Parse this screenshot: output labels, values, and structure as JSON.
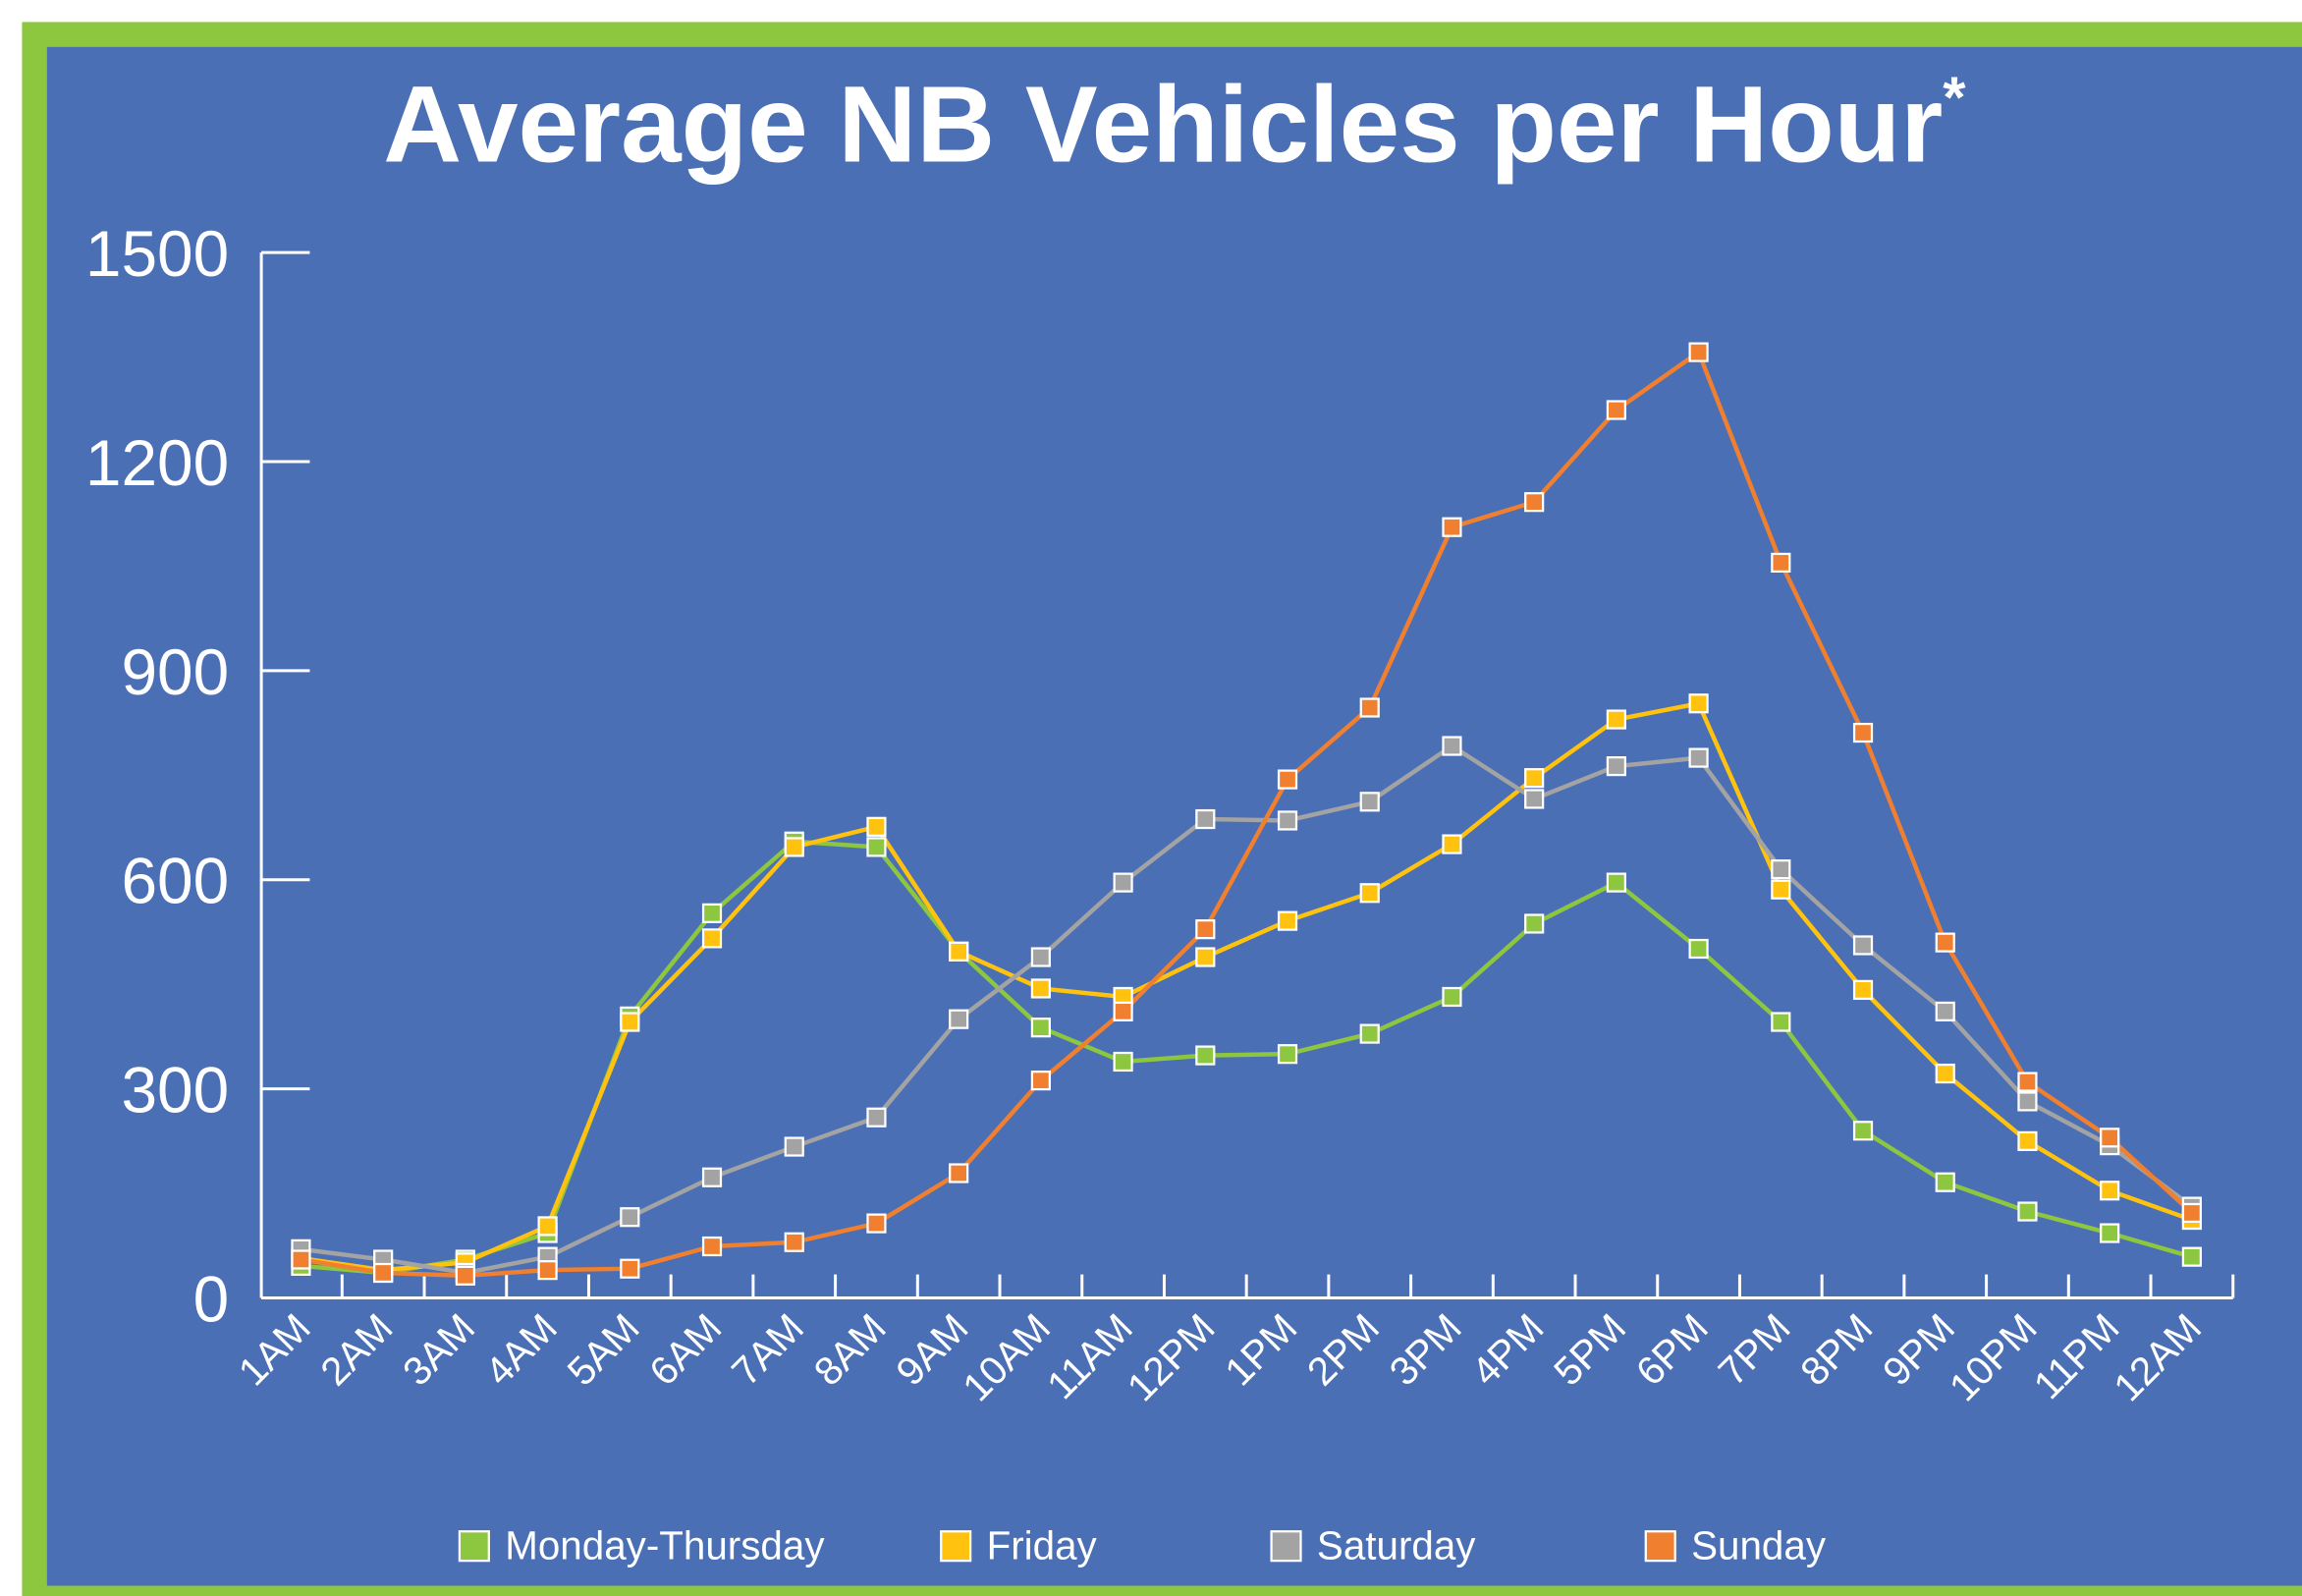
{
  "chart_data": {
    "type": "line",
    "title": "Average NB Vehicles per Hour",
    "title_note": "*",
    "categories": [
      "1AM",
      "2AM",
      "3AM",
      "4AM",
      "5AM",
      "6AM",
      "7AM",
      "8AM",
      "9AM",
      "10AM",
      "11AM",
      "12PM",
      "1PM",
      "2PM",
      "3PM",
      "4PM",
      "5PM",
      "6PM",
      "7PM",
      "8PM",
      "9PM",
      "10PM",
      "11PM",
      "12AM"
    ],
    "series": [
      {
        "name": "Monday-Thursday",
        "color": "#8dc63f",
        "values": [
          46,
          36,
          55,
          93,
          404,
          552,
          655,
          647,
          497,
          388,
          339,
          348,
          350,
          379,
          432,
          537,
          596,
          501,
          396,
          240,
          166,
          124,
          93,
          59
        ]
      },
      {
        "name": "Friday",
        "color": "#ffc20e",
        "values": [
          57,
          40,
          51,
          103,
          396,
          516,
          647,
          676,
          497,
          444,
          432,
          489,
          541,
          581,
          651,
          746,
          830,
          853,
          586,
          442,
          322,
          225,
          154,
          112
        ]
      },
      {
        "name": "Saturday",
        "color": "#a3a3a3",
        "values": [
          70,
          55,
          36,
          59,
          116,
          173,
          217,
          259,
          400,
          489,
          596,
          687,
          685,
          712,
          792,
          716,
          763,
          775,
          615,
          506,
          411,
          282,
          219,
          131
        ]
      },
      {
        "name": "Sunday",
        "color": "#f07f2f",
        "values": [
          55,
          36,
          32,
          40,
          42,
          74,
          80,
          107,
          179,
          312,
          411,
          529,
          744,
          847,
          1106,
          1142,
          1274,
          1357,
          1055,
          811,
          510,
          310,
          230,
          122
        ]
      }
    ],
    "ylim": [
      0,
      1500
    ],
    "yticks": [
      0,
      300,
      600,
      900,
      1200,
      1500
    ],
    "legend": "bottom"
  }
}
